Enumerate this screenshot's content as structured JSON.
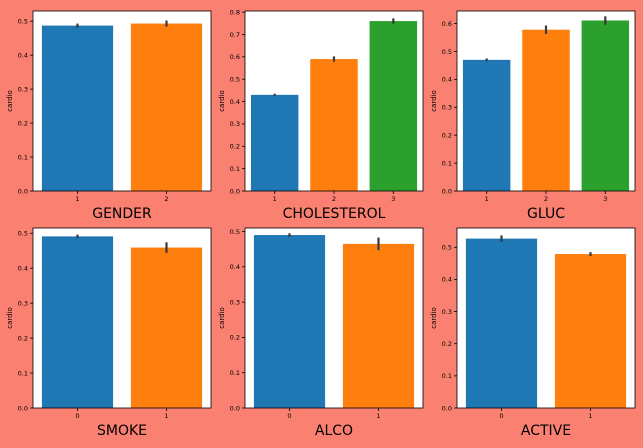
{
  "figure": {
    "background": "#fa8072"
  },
  "palette": [
    "#1f77b4",
    "#ff7f0e",
    "#2ca02c"
  ],
  "chart_data": [
    {
      "type": "bar",
      "xlabel": "GENDER",
      "ylabel": "cardio",
      "categories": [
        "1",
        "2"
      ],
      "values": [
        0.487,
        0.493
      ],
      "errors": [
        0.006,
        0.009
      ],
      "ylim": [
        0,
        0.53
      ],
      "yticks": [
        "0.0",
        "0.1",
        "0.2",
        "0.3",
        "0.4",
        "0.5"
      ],
      "ytick_values": [
        0,
        0.1,
        0.2,
        0.3,
        0.4,
        0.5
      ]
    },
    {
      "type": "bar",
      "xlabel": "CHOLESTEROL",
      "ylabel": "cardio",
      "categories": [
        "1",
        "2",
        "3"
      ],
      "values": [
        0.43,
        0.59,
        0.76
      ],
      "errors": [
        0.005,
        0.012,
        0.012
      ],
      "ylim": [
        0,
        0.805
      ],
      "yticks": [
        "0.0",
        "0.1",
        "0.2",
        "0.3",
        "0.4",
        "0.5",
        "0.6",
        "0.7",
        "0.8"
      ],
      "ytick_values": [
        0,
        0.1,
        0.2,
        0.3,
        0.4,
        0.5,
        0.6,
        0.7,
        0.8
      ]
    },
    {
      "type": "bar",
      "xlabel": "GLUC",
      "ylabel": "cardio",
      "categories": [
        "1",
        "2",
        "3"
      ],
      "values": [
        0.47,
        0.578,
        0.611
      ],
      "errors": [
        0.005,
        0.015,
        0.015
      ],
      "ylim": [
        0,
        0.645
      ],
      "yticks": [
        "0.0",
        "0.1",
        "0.2",
        "0.3",
        "0.4",
        "0.5",
        "0.6"
      ],
      "ytick_values": [
        0,
        0.1,
        0.2,
        0.3,
        0.4,
        0.5,
        0.6
      ]
    },
    {
      "type": "bar",
      "xlabel": "SMOKE",
      "ylabel": "cardio",
      "categories": [
        "0",
        "1"
      ],
      "values": [
        0.491,
        0.459
      ],
      "errors": [
        0.005,
        0.015
      ],
      "ylim": [
        0,
        0.515
      ],
      "yticks": [
        "0.0",
        "0.1",
        "0.2",
        "0.3",
        "0.4",
        "0.5"
      ],
      "ytick_values": [
        0,
        0.1,
        0.2,
        0.3,
        0.4,
        0.5
      ]
    },
    {
      "type": "bar",
      "xlabel": "ALCO",
      "ylabel": "cardio",
      "categories": [
        "0",
        "1"
      ],
      "values": [
        0.49,
        0.465
      ],
      "errors": [
        0.005,
        0.018
      ],
      "ylim": [
        0,
        0.51
      ],
      "yticks": [
        "0.0",
        "0.1",
        "0.2",
        "0.3",
        "0.4",
        "0.5"
      ],
      "ytick_values": [
        0,
        0.1,
        0.2,
        0.3,
        0.4,
        0.5
      ]
    },
    {
      "type": "bar",
      "xlabel": "ACTIVE",
      "ylabel": "cardio",
      "categories": [
        "0",
        "1"
      ],
      "values": [
        0.527,
        0.479
      ],
      "errors": [
        0.01,
        0.006
      ],
      "ylim": [
        0,
        0.56
      ],
      "yticks": [
        "0.0",
        "0.1",
        "0.2",
        "0.3",
        "0.4",
        "0.5"
      ],
      "ytick_values": [
        0,
        0.1,
        0.2,
        0.3,
        0.4,
        0.5
      ]
    }
  ]
}
